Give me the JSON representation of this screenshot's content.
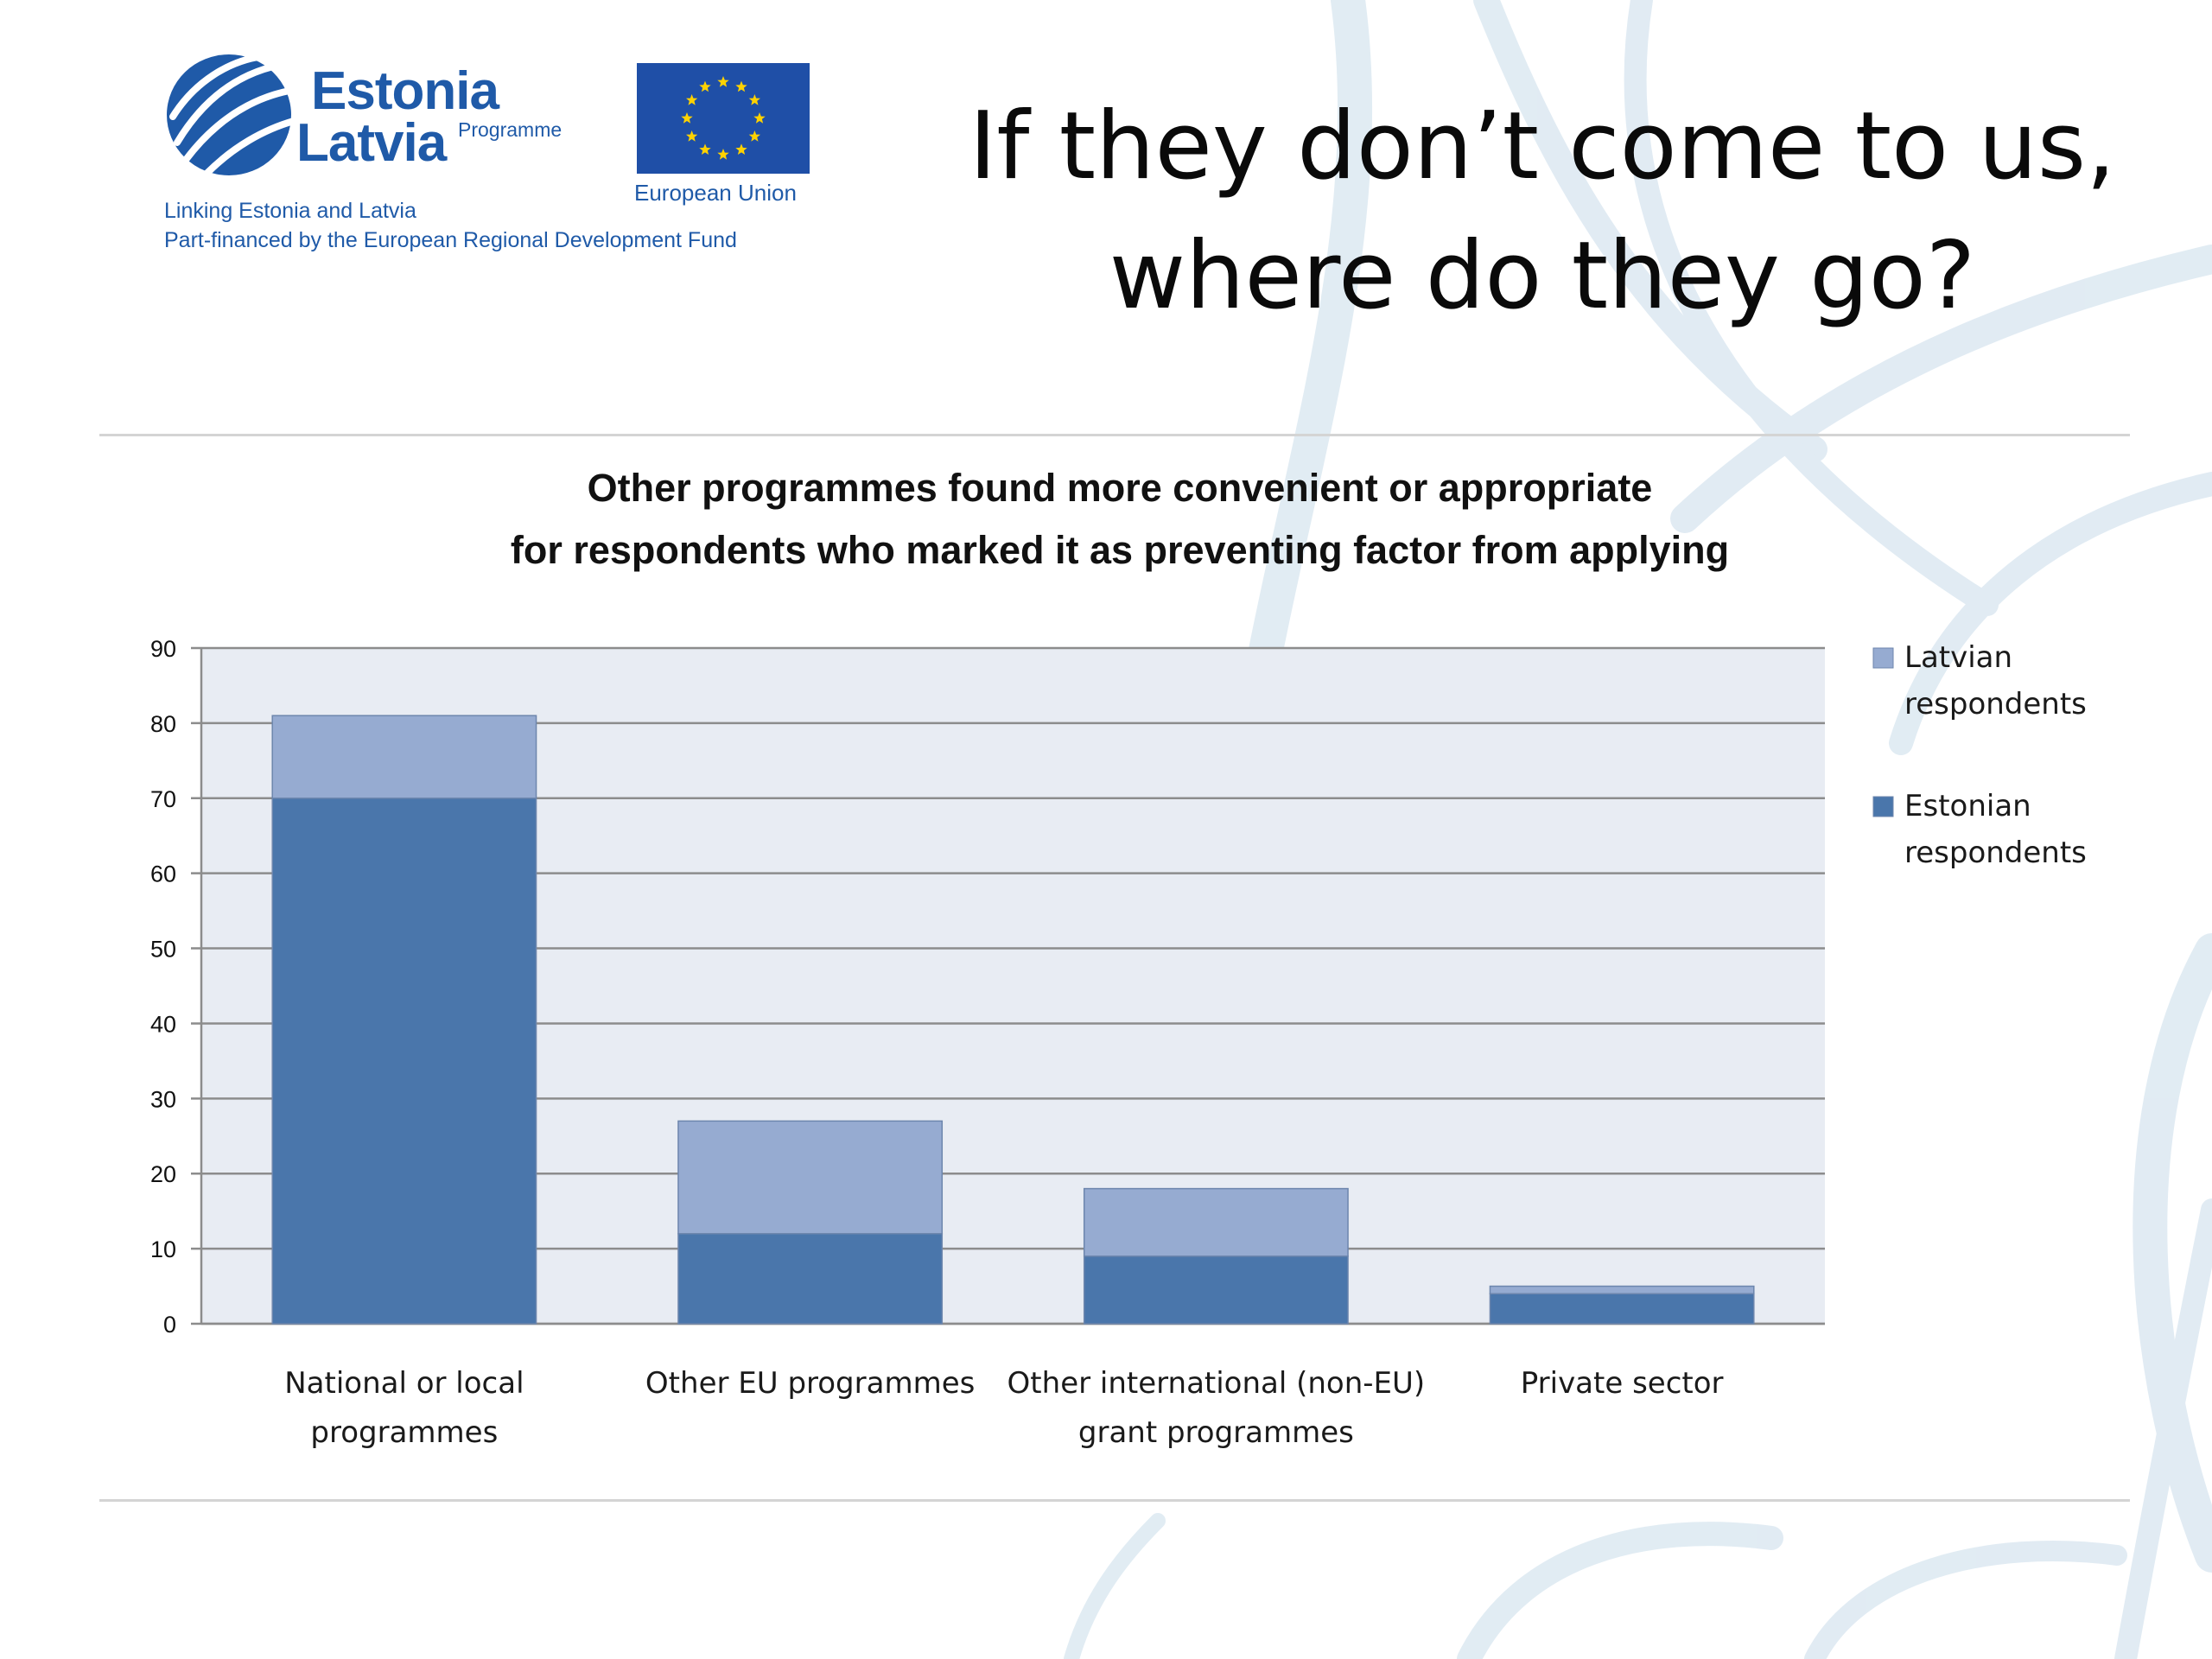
{
  "slide": {
    "title_lines": [
      "If they don’t come to us,",
      "where do they go?"
    ]
  },
  "logo": {
    "word1": "Estonia",
    "word2": "Latvia",
    "programme": "Programme",
    "eu_label": "European Union",
    "line1": "Linking Estonia and Latvia",
    "line2": "Part-financed by the European Regional Development Fund"
  },
  "colors": {
    "estonian": "#4a76ab",
    "latvian": "#96abd1",
    "plot_bg": "#e8ecf3",
    "logo_blue": "#1f5aa8",
    "eu_blue": "#1f4fa7",
    "eu_star": "#ffd200"
  },
  "chart_data": {
    "type": "bar",
    "stacked": true,
    "title": "Other programmes found more convenient or appropriate for respondents who marked it as preventing factor from applying",
    "title_lines": [
      "Other programmes found more convenient or appropriate",
      "for respondents who marked it as preventing factor from applying"
    ],
    "categories": [
      [
        "National or local",
        "programmes"
      ],
      [
        "Other EU programmes"
      ],
      [
        "Other international (non-EU)",
        "grant programmes"
      ],
      [
        "Private sector"
      ]
    ],
    "series": [
      {
        "name": "Estonian respondents",
        "legend_lines": [
          "Estonian",
          "respondents"
        ],
        "color": "#4a76ab",
        "values": [
          70,
          12,
          9,
          4
        ]
      },
      {
        "name": "Latvian respondents",
        "legend_lines": [
          "Latvian",
          "respondents"
        ],
        "color": "#96abd1",
        "values": [
          11,
          15,
          9,
          1
        ]
      }
    ],
    "ylim": [
      0,
      90
    ],
    "yticks": [
      0,
      10,
      20,
      30,
      40,
      50,
      60,
      70,
      80,
      90
    ],
    "grid": true,
    "legend_position": "right",
    "xlabel": "",
    "ylabel": ""
  }
}
